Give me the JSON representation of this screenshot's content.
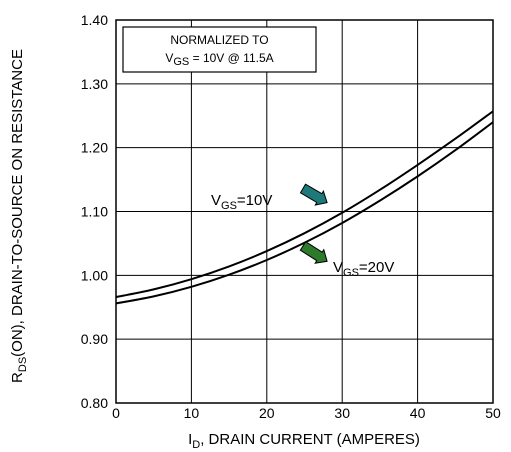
{
  "chart_data": {
    "type": "line",
    "ylabel_main": "R",
    "ylabel_sub": "DS",
    "ylabel_rest": "(ON), DRAIN-TO-SOURCE  ON  RESISTANCE",
    "xlabel_main": "I",
    "xlabel_sub": "D",
    "xlabel_rest": ", DRAIN CURRENT (AMPERES)",
    "xlim": [
      0,
      50
    ],
    "ylim": [
      0.8,
      1.4
    ],
    "x_ticks": [
      "0",
      "10",
      "20",
      "30",
      "40",
      "50"
    ],
    "y_ticks": [
      "0.80",
      "0.90",
      "1.00",
      "1.10",
      "1.20",
      "1.30",
      "1.40"
    ],
    "grid": true,
    "annotation": {
      "line1": "NORMALIZED TO",
      "line2_main": "V",
      "line2_sub": "GS",
      "line2_rest": " = 10V  @  11.5A"
    },
    "series": [
      {
        "label_main": "V",
        "label_sub": "GS",
        "label_rest": "=10V",
        "color": "#000000",
        "arrow_color": "#1e7a7a",
        "x": [
          0,
          5,
          10,
          15,
          20,
          25,
          30,
          35,
          40,
          45,
          50
        ],
        "y": [
          0.966,
          0.978,
          0.994,
          1.014,
          1.038,
          1.066,
          1.098,
          1.134,
          1.173,
          1.214,
          1.257
        ]
      },
      {
        "label_main": "V",
        "label_sub": "GS",
        "label_rest": "=20V",
        "color": "#000000",
        "arrow_color": "#2d7a2d",
        "x": [
          0,
          5,
          10,
          15,
          20,
          25,
          30,
          35,
          40,
          45,
          50
        ],
        "y": [
          0.956,
          0.967,
          0.982,
          1.001,
          1.024,
          1.051,
          1.082,
          1.117,
          1.155,
          1.196,
          1.24
        ]
      }
    ]
  }
}
